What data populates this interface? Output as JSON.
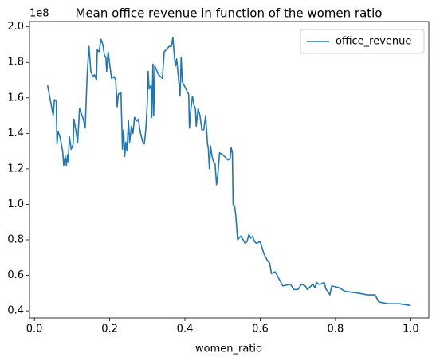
{
  "chart_data": {
    "type": "line",
    "title": "Mean office revenue in function of the women ratio",
    "x_label": "women_ratio",
    "y_offset": "1e8",
    "legend": "upper right",
    "grid": false,
    "xlim": [
      -0.013,
      1.048
    ],
    "ylim": [
      0.36,
      2.03
    ],
    "xticks": [
      {
        "value": 0,
        "label": "0.0"
      },
      0.2,
      0.4,
      0.6,
      0.8,
      {
        "value": 1,
        "label": "1.0"
      }
    ],
    "yticks": [
      0.4,
      0.6,
      0.8,
      {
        "value": 1,
        "label": "1.0"
      },
      1.2,
      1.4,
      1.6,
      1.8,
      {
        "value": 2,
        "label": "2.0"
      }
    ],
    "x": [
      0.035,
      0.05,
      0.053,
      0.058,
      0.06,
      0.063,
      0.068,
      0.075,
      0.078,
      0.082,
      0.085,
      0.088,
      0.09,
      0.093,
      0.098,
      0.103,
      0.105,
      0.11,
      0.115,
      0.12,
      0.13,
      0.135,
      0.14,
      0.145,
      0.15,
      0.155,
      0.16,
      0.165,
      0.167,
      0.172,
      0.177,
      0.182,
      0.186,
      0.19,
      0.192,
      0.196,
      0.2,
      0.205,
      0.212,
      0.216,
      0.22,
      0.223,
      0.23,
      0.234,
      0.237,
      0.24,
      0.243,
      0.246,
      0.25,
      0.253,
      0.258,
      0.262,
      0.266,
      0.272,
      0.276,
      0.282,
      0.288,
      0.292,
      0.296,
      0.3,
      0.302,
      0.305,
      0.31,
      0.312,
      0.315,
      0.317,
      0.32,
      0.324,
      0.33,
      0.34,
      0.345,
      0.35,
      0.358,
      0.364,
      0.368,
      0.372,
      0.375,
      0.378,
      0.383,
      0.387,
      0.39,
      0.393,
      0.398,
      0.405,
      0.41,
      0.412,
      0.415,
      0.42,
      0.424,
      0.428,
      0.43,
      0.435,
      0.44,
      0.445,
      0.45,
      0.455,
      0.46,
      0.462,
      0.465,
      0.468,
      0.472,
      0.476,
      0.48,
      0.484,
      0.488,
      0.492,
      0.5,
      0.51,
      0.515,
      0.52,
      0.523,
      0.526,
      0.528,
      0.532,
      0.535,
      0.54,
      0.548,
      0.555,
      0.56,
      0.565,
      0.57,
      0.575,
      0.58,
      0.585,
      0.59,
      0.6,
      0.61,
      0.62,
      0.625,
      0.63,
      0.64,
      0.65,
      0.66,
      0.68,
      0.69,
      0.7,
      0.71,
      0.72,
      0.725,
      0.74,
      0.745,
      0.75,
      0.755,
      0.76,
      0.77,
      0.775,
      0.78,
      0.785,
      0.79,
      0.81,
      0.825,
      0.86,
      0.885,
      0.905,
      0.915,
      0.94,
      0.97,
      1.0
    ],
    "series": [
      {
        "name": "office_revenue",
        "color": "#1f77b4",
        "values": [
          1.67,
          1.5,
          1.59,
          1.58,
          1.34,
          1.41,
          1.38,
          1.3,
          1.22,
          1.27,
          1.22,
          1.28,
          1.24,
          1.38,
          1.31,
          1.34,
          1.48,
          1.42,
          1.35,
          1.54,
          1.48,
          1.43,
          1.72,
          1.89,
          1.75,
          1.72,
          1.73,
          1.7,
          1.87,
          1.86,
          1.93,
          1.9,
          1.84,
          1.83,
          1.75,
          1.86,
          1.79,
          1.71,
          1.72,
          1.7,
          1.55,
          1.62,
          1.63,
          1.31,
          1.42,
          1.27,
          1.35,
          1.3,
          1.47,
          1.35,
          1.44,
          1.4,
          1.49,
          1.47,
          1.48,
          1.4,
          1.35,
          1.34,
          1.42,
          1.57,
          1.75,
          1.65,
          1.67,
          1.49,
          1.79,
          1.5,
          1.78,
          1.76,
          1.73,
          1.71,
          1.86,
          1.87,
          1.89,
          1.89,
          1.94,
          1.83,
          1.78,
          1.82,
          1.71,
          1.61,
          1.83,
          1.69,
          1.67,
          1.64,
          1.62,
          1.43,
          1.52,
          1.61,
          1.56,
          1.54,
          1.44,
          1.54,
          1.5,
          1.42,
          1.42,
          1.5,
          1.34,
          1.32,
          1.2,
          1.33,
          1.27,
          1.24,
          1.23,
          1.11,
          1.18,
          1.29,
          1.28,
          1.26,
          1.25,
          1.26,
          1.32,
          1.29,
          1.0,
          0.99,
          0.94,
          0.8,
          0.82,
          0.8,
          0.78,
          0.79,
          0.83,
          0.81,
          0.82,
          0.79,
          0.78,
          0.79,
          0.72,
          0.68,
          0.67,
          0.61,
          0.62,
          0.58,
          0.54,
          0.55,
          0.52,
          0.52,
          0.55,
          0.54,
          0.52,
          0.55,
          0.53,
          0.56,
          0.55,
          0.55,
          0.56,
          0.52,
          0.51,
          0.49,
          0.54,
          0.53,
          0.51,
          0.5,
          0.49,
          0.49,
          0.45,
          0.44,
          0.44,
          0.43
        ]
      }
    ]
  }
}
